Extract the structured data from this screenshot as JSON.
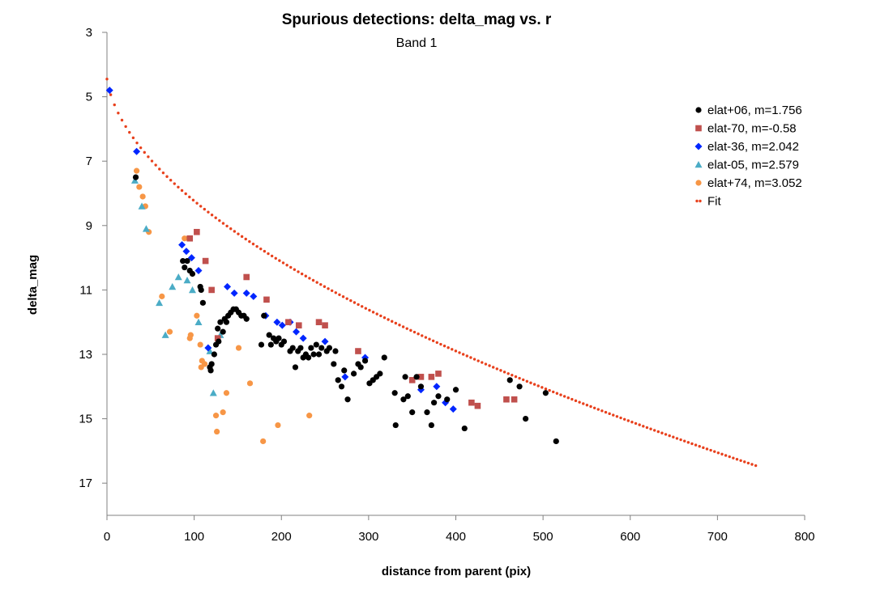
{
  "chart_data": {
    "type": "scatter",
    "title": "Spurious detections: delta_mag vs. r",
    "subtitle": "Band 1",
    "xlabel": "distance from parent (pix)",
    "ylabel": "delta_mag",
    "xlim": [
      0,
      800
    ],
    "ylim": [
      3,
      18
    ],
    "y_inverted": true,
    "x_ticks": [
      0,
      100,
      200,
      300,
      400,
      500,
      600,
      700,
      800
    ],
    "y_ticks": [
      3,
      5,
      7,
      9,
      11,
      13,
      15,
      17
    ],
    "grid": false,
    "legend_position": "right",
    "series": [
      {
        "name": "elat+06, m=1.756",
        "marker": "circle",
        "color": "#000000",
        "points": [
          [
            33,
            7.5
          ],
          [
            87,
            10.1
          ],
          [
            89,
            10.3
          ],
          [
            92,
            10.1
          ],
          [
            95,
            10.4
          ],
          [
            98,
            10.5
          ],
          [
            107,
            10.9
          ],
          [
            108,
            11.0
          ],
          [
            110,
            11.4
          ],
          [
            118,
            13.4
          ],
          [
            119,
            13.5
          ],
          [
            120,
            13.3
          ],
          [
            123,
            13.0
          ],
          [
            125,
            12.7
          ],
          [
            127,
            12.2
          ],
          [
            128,
            12.6
          ],
          [
            130,
            12.0
          ],
          [
            133,
            12.3
          ],
          [
            135,
            11.9
          ],
          [
            137,
            12.0
          ],
          [
            139,
            11.8
          ],
          [
            142,
            11.7
          ],
          [
            145,
            11.6
          ],
          [
            148,
            11.6
          ],
          [
            151,
            11.7
          ],
          [
            154,
            11.8
          ],
          [
            157,
            11.8
          ],
          [
            160,
            11.9
          ],
          [
            177,
            12.7
          ],
          [
            180,
            11.8
          ],
          [
            186,
            12.4
          ],
          [
            188,
            12.7
          ],
          [
            191,
            12.5
          ],
          [
            194,
            12.6
          ],
          [
            197,
            12.5
          ],
          [
            200,
            12.7
          ],
          [
            203,
            12.6
          ],
          [
            210,
            12.9
          ],
          [
            213,
            12.8
          ],
          [
            216,
            13.4
          ],
          [
            219,
            12.9
          ],
          [
            222,
            12.8
          ],
          [
            225,
            13.1
          ],
          [
            228,
            13.0
          ],
          [
            231,
            13.1
          ],
          [
            234,
            12.8
          ],
          [
            237,
            13.0
          ],
          [
            240,
            12.7
          ],
          [
            243,
            13.0
          ],
          [
            246,
            12.8
          ],
          [
            252,
            12.9
          ],
          [
            255,
            12.8
          ],
          [
            260,
            13.3
          ],
          [
            262,
            12.9
          ],
          [
            265,
            13.8
          ],
          [
            269,
            14.0
          ],
          [
            272,
            13.5
          ],
          [
            276,
            14.4
          ],
          [
            283,
            13.6
          ],
          [
            288,
            13.3
          ],
          [
            291,
            13.4
          ],
          [
            296,
            13.2
          ],
          [
            301,
            13.9
          ],
          [
            305,
            13.8
          ],
          [
            309,
            13.7
          ],
          [
            313,
            13.6
          ],
          [
            318,
            13.1
          ],
          [
            330,
            14.2
          ],
          [
            331,
            15.2
          ],
          [
            340,
            14.4
          ],
          [
            342,
            13.7
          ],
          [
            345,
            14.3
          ],
          [
            350,
            14.8
          ],
          [
            355,
            13.7
          ],
          [
            360,
            14.0
          ],
          [
            367,
            14.8
          ],
          [
            372,
            15.2
          ],
          [
            375,
            14.5
          ],
          [
            380,
            14.3
          ],
          [
            390,
            14.4
          ],
          [
            400,
            14.1
          ],
          [
            410,
            15.3
          ],
          [
            462,
            13.8
          ],
          [
            473,
            14.0
          ],
          [
            480,
            15.0
          ],
          [
            503,
            14.2
          ],
          [
            515,
            15.7
          ]
        ]
      },
      {
        "name": "elat-70, m=-0.58",
        "marker": "square",
        "color": "#c0504d",
        "points": [
          [
            95,
            9.4
          ],
          [
            103,
            9.2
          ],
          [
            113,
            10.1
          ],
          [
            120,
            11.0
          ],
          [
            127,
            12.5
          ],
          [
            160,
            10.6
          ],
          [
            183,
            11.3
          ],
          [
            208,
            12.0
          ],
          [
            220,
            12.1
          ],
          [
            243,
            12.0
          ],
          [
            250,
            12.1
          ],
          [
            288,
            12.9
          ],
          [
            350,
            13.8
          ],
          [
            360,
            13.7
          ],
          [
            372,
            13.7
          ],
          [
            380,
            13.6
          ],
          [
            418,
            14.5
          ],
          [
            425,
            14.6
          ],
          [
            458,
            14.4
          ],
          [
            467,
            14.4
          ]
        ]
      },
      {
        "name": "elat-36, m=2.042",
        "marker": "diamond",
        "color": "#0026ff",
        "points": [
          [
            3,
            4.8
          ],
          [
            34,
            6.7
          ],
          [
            86,
            9.6
          ],
          [
            91,
            9.8
          ],
          [
            97,
            10.0
          ],
          [
            105,
            10.4
          ],
          [
            116,
            12.8
          ],
          [
            138,
            10.9
          ],
          [
            146,
            11.1
          ],
          [
            160,
            11.1
          ],
          [
            168,
            11.2
          ],
          [
            182,
            11.8
          ],
          [
            195,
            12.0
          ],
          [
            201,
            12.1
          ],
          [
            210,
            12.0
          ],
          [
            217,
            12.3
          ],
          [
            225,
            12.5
          ],
          [
            250,
            12.6
          ],
          [
            273,
            13.7
          ],
          [
            296,
            13.1
          ],
          [
            360,
            14.1
          ],
          [
            378,
            14.0
          ],
          [
            388,
            14.5
          ],
          [
            397,
            14.7
          ]
        ]
      },
      {
        "name": "elat-05, m=2.579",
        "marker": "triangle",
        "color": "#4bacc6",
        "points": [
          [
            32,
            7.6
          ],
          [
            40,
            8.4
          ],
          [
            45,
            9.1
          ],
          [
            60,
            11.4
          ],
          [
            67,
            12.4
          ],
          [
            75,
            10.9
          ],
          [
            82,
            10.6
          ],
          [
            92,
            10.7
          ],
          [
            98,
            11.0
          ],
          [
            105,
            12.0
          ],
          [
            118,
            12.9
          ],
          [
            122,
            14.2
          ],
          [
            130,
            12.4
          ]
        ]
      },
      {
        "name": "elat+74, m=3.052",
        "marker": "circle",
        "color": "#f79646",
        "points": [
          [
            34,
            7.3
          ],
          [
            37,
            7.8
          ],
          [
            41,
            8.1
          ],
          [
            44,
            8.4
          ],
          [
            48,
            9.2
          ],
          [
            63,
            11.2
          ],
          [
            72,
            12.3
          ],
          [
            89,
            9.4
          ],
          [
            95,
            12.5
          ],
          [
            96,
            12.4
          ],
          [
            103,
            11.8
          ],
          [
            107,
            12.7
          ],
          [
            108,
            13.4
          ],
          [
            109,
            13.2
          ],
          [
            112,
            13.3
          ],
          [
            125,
            14.9
          ],
          [
            126,
            15.4
          ],
          [
            133,
            14.8
          ],
          [
            137,
            14.2
          ],
          [
            151,
            12.8
          ],
          [
            164,
            13.9
          ],
          [
            179,
            15.7
          ],
          [
            196,
            15.2
          ],
          [
            232,
            14.9
          ]
        ]
      },
      {
        "name": "Fit",
        "marker": "line",
        "color": "#e8401c",
        "curve": {
          "x_start": 0,
          "x_end": 746,
          "y_start": 4.45,
          "y_end": 16.8
        }
      }
    ]
  }
}
